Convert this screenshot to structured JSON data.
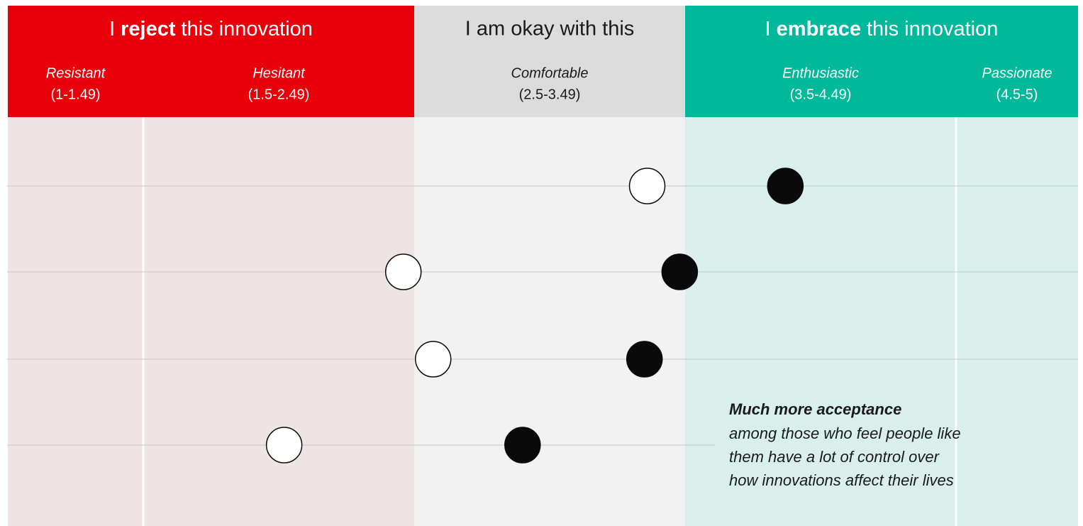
{
  "chart_data": {
    "type": "dot",
    "groups": [
      {
        "prefix": "I",
        "bold": "reject",
        "suffix": "this innovation",
        "from": 1,
        "to": 2.5,
        "color": "#e8000b",
        "bg": "#f0e3e3",
        "text_color": "#ffffff"
      },
      {
        "text": "I am okay with this",
        "from": 2.5,
        "to": 3.5,
        "color": "#dcdcdc",
        "bg": "#f2f2f2",
        "text_color": "#1a1a1a"
      },
      {
        "prefix": "I",
        "bold": "embrace",
        "suffix": "this innovation",
        "from": 3.5,
        "to": 5,
        "color": "#00b99a",
        "bg": "#d9efeb",
        "text_color": "#ffffff"
      }
    ],
    "zones": [
      {
        "name": "Resistant",
        "range": "(1-1.49)",
        "from": 1,
        "to": 1.5
      },
      {
        "name": "Hesitant",
        "range": "(1.5-2.49)",
        "from": 1.5,
        "to": 2.5
      },
      {
        "name": "Comfortable",
        "range": "(2.5-3.49)",
        "from": 2.5,
        "to": 3.5
      },
      {
        "name": "Enthusiastic",
        "range": "(3.5-4.49)",
        "from": 3.5,
        "to": 4.5
      },
      {
        "name": "Passionate",
        "range": "(4.5-5)",
        "from": 4.5,
        "to": 5
      }
    ],
    "categories": [
      null,
      null,
      null,
      null
    ],
    "series": [
      {
        "color": "#ffffff",
        "values": [
          3.36,
          2.46,
          2.57,
          2.02
        ]
      },
      {
        "color": "#0a0a0a",
        "values": [
          3.87,
          3.48,
          3.35,
          2.9
        ]
      }
    ],
    "xlim": [
      1,
      5
    ],
    "annotation": {
      "title": "Much more acceptance",
      "lines": [
        "among those who feel people like",
        "them have a lot of control over",
        "how innovations affect their lives"
      ]
    }
  }
}
